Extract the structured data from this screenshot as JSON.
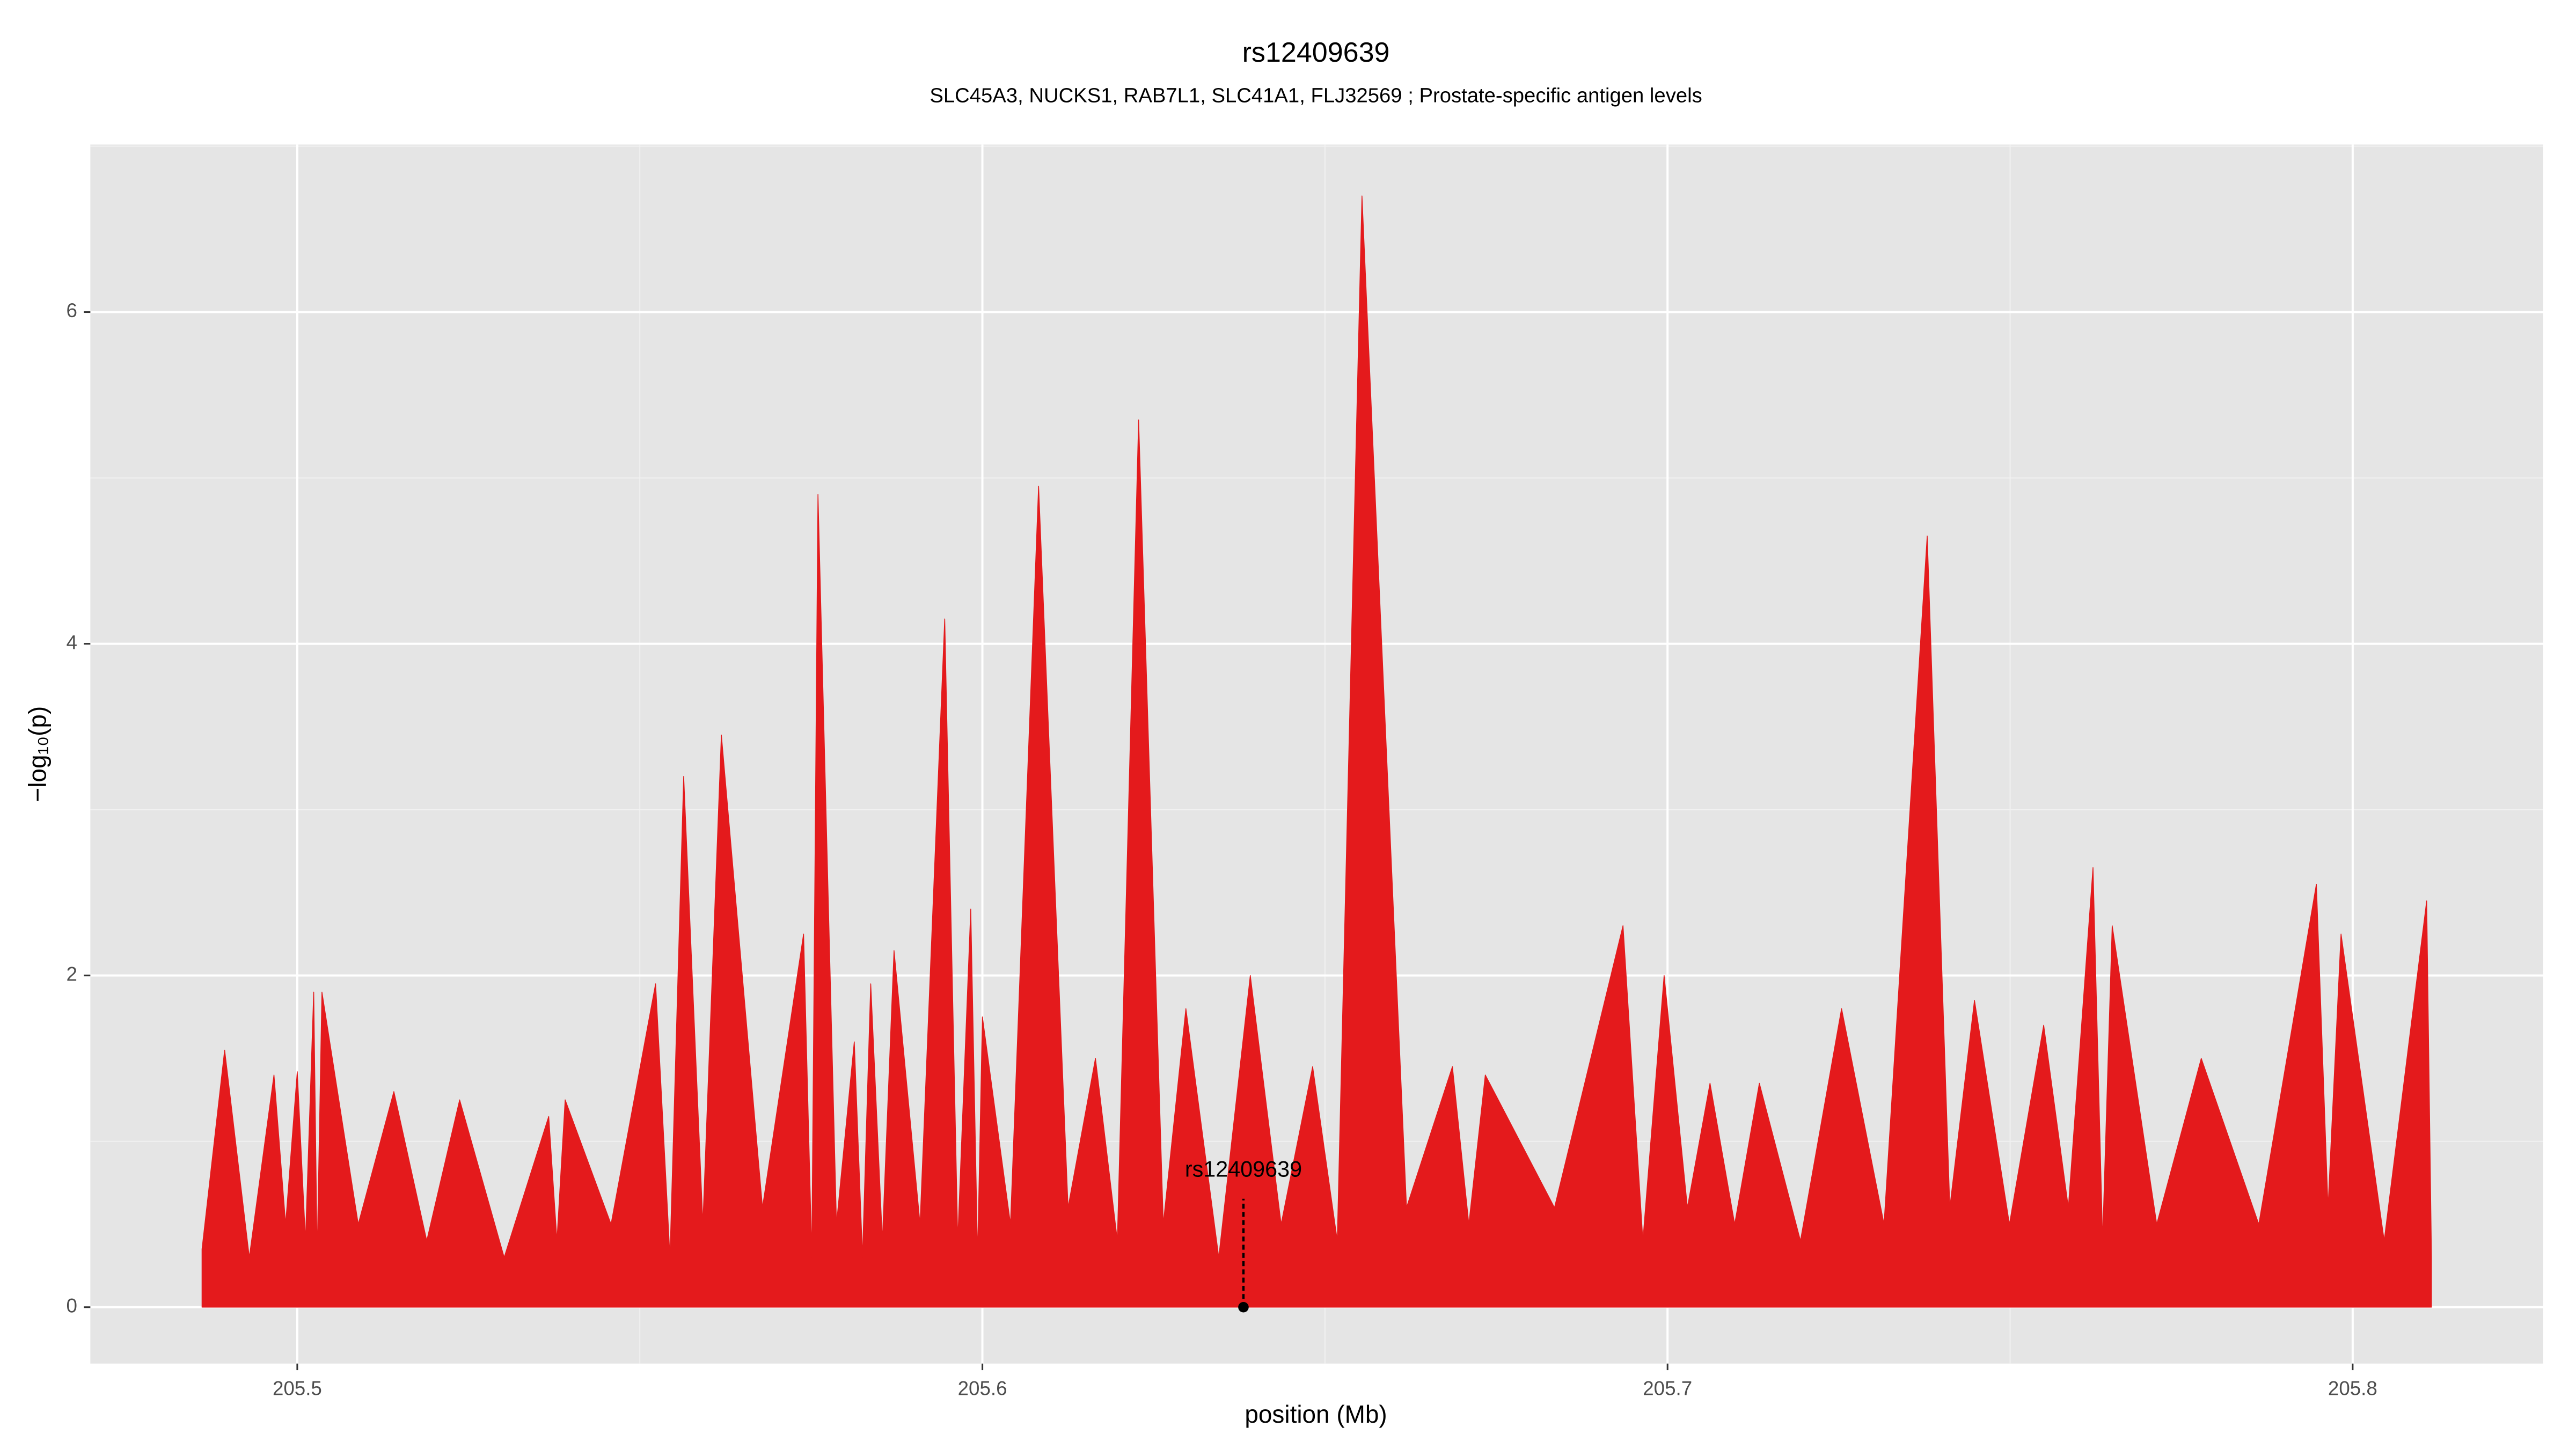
{
  "chart_data": {
    "type": "area",
    "title": "rs12409639",
    "subtitle": "SLC45A3, NUCKS1, RAB7L1, SLC41A1, FLJ32569 ; Prostate-specific antigen levels",
    "x_label": "position (Mb)",
    "y_label": "−log₁₀(p)",
    "color": "#e41a1c",
    "x": [
      205.4861,
      205.4894,
      205.493,
      205.4966,
      205.4983,
      205.5,
      205.5012,
      205.5024,
      205.5029,
      205.5036,
      205.5089,
      205.5141,
      205.5189,
      205.5237,
      205.5302,
      205.5367,
      205.5379,
      205.5391,
      205.5458,
      205.5523,
      205.5544,
      205.5564,
      205.5592,
      205.5619,
      205.5679,
      205.5739,
      205.5751,
      205.576,
      205.5787,
      205.5813,
      205.5825,
      205.5837,
      205.5854,
      205.5871,
      205.5909,
      205.5945,
      205.5964,
      205.5983,
      205.5993,
      205.6,
      205.6041,
      205.6082,
      205.6125,
      205.6165,
      205.6197,
      205.6228,
      205.6264,
      205.6297,
      205.6345,
      205.6391,
      205.6436,
      205.6482,
      205.6518,
      205.6554,
      205.6619,
      205.6686,
      205.671,
      205.6734,
      205.6835,
      205.6935,
      205.6964,
      205.6995,
      205.7029,
      205.7062,
      205.7098,
      205.7134,
      205.7194,
      205.7254,
      205.7316,
      205.7379,
      205.7412,
      205.7448,
      205.7499,
      205.7549,
      205.7585,
      205.7621,
      205.7635,
      205.7649,
      205.7714,
      205.7779,
      205.7863,
      205.7947,
      205.7964,
      205.7983,
      205.8046,
      205.8108,
      205.8115
    ],
    "values": [
      0.35,
      1.55,
      0.3,
      1.4,
      0.5,
      1.42,
      0.4,
      1.9,
      0.3,
      1.9,
      0.5,
      1.3,
      0.4,
      1.25,
      0.3,
      1.15,
      0.4,
      1.25,
      0.5,
      1.95,
      0.3,
      3.2,
      0.5,
      3.45,
      0.6,
      2.25,
      0.3,
      4.9,
      0.5,
      1.6,
      0.3,
      1.95,
      0.4,
      2.15,
      0.5,
      4.15,
      0.4,
      2.4,
      0.3,
      1.75,
      0.5,
      4.95,
      0.6,
      1.5,
      0.4,
      5.35,
      0.5,
      1.8,
      0.3,
      2.0,
      0.5,
      1.45,
      0.4,
      6.7,
      0.6,
      1.45,
      0.5,
      1.4,
      0.6,
      2.3,
      0.4,
      2.0,
      0.6,
      1.35,
      0.5,
      1.35,
      0.4,
      1.8,
      0.5,
      4.65,
      0.6,
      1.85,
      0.5,
      1.7,
      0.6,
      2.65,
      0.4,
      2.3,
      0.5,
      1.5,
      0.5,
      2.55,
      0.6,
      2.25,
      0.4,
      2.45,
      0.3
    ],
    "annotation": {
      "text": "rs12409639",
      "x": 205.6381,
      "y": 0
    },
    "xlim": [
      205.4698,
      205.8278
    ],
    "xticks": [
      205.5,
      205.6,
      205.7,
      205.8
    ],
    "ylim": [
      -0.34,
      7.01
    ],
    "yticks": [
      0,
      2,
      4,
      6
    ],
    "grid": true
  }
}
